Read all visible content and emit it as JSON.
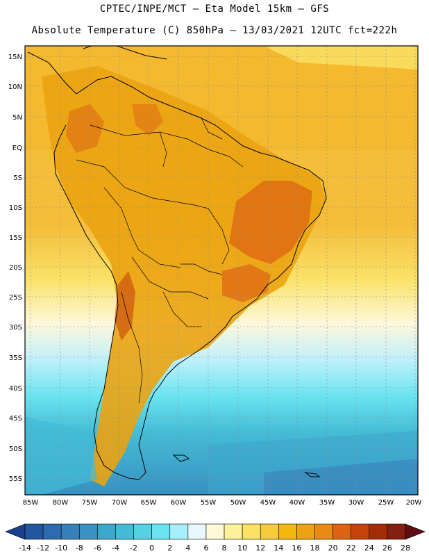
{
  "title_line1": "CPTEC/INPE/MCT –  Eta Model 15km – GFS",
  "title_line2": "Absolute Temperature (C) 850hPa – 13/03/2021 12UTC fct=222h",
  "lat_labels": [
    "15N",
    "10N",
    "5N",
    "EQ",
    "5S",
    "10S",
    "15S",
    "20S",
    "25S",
    "30S",
    "35S",
    "40S",
    "45S",
    "50S",
    "55S"
  ],
  "lon_labels": [
    "85W",
    "80W",
    "75W",
    "70W",
    "65W",
    "60W",
    "55W",
    "50W",
    "45W",
    "40W",
    "35W",
    "30W",
    "25W",
    "20W"
  ],
  "colorbar": {
    "ticks": [
      "-14",
      "-12",
      "-10",
      "-8",
      "-6",
      "-4",
      "-2",
      "0",
      "2",
      "4",
      "6",
      "8",
      "10",
      "12",
      "14",
      "16",
      "18",
      "20",
      "22",
      "24",
      "26",
      "28"
    ],
    "colors": [
      "#1a3f8f",
      "#2456a0",
      "#2e6aaf",
      "#3880b9",
      "#3b92c2",
      "#3ea7cc",
      "#45bcd6",
      "#55d1e4",
      "#6ae4f0",
      "#a6eef9",
      "#e6f8fd",
      "#fdf9d8",
      "#fdf29a",
      "#fae267",
      "#f6cc3c",
      "#f2b80e",
      "#eba311",
      "#e88a14",
      "#dd6412",
      "#c7430c",
      "#a22c08",
      "#842012",
      "#5e0d13"
    ]
  }
}
